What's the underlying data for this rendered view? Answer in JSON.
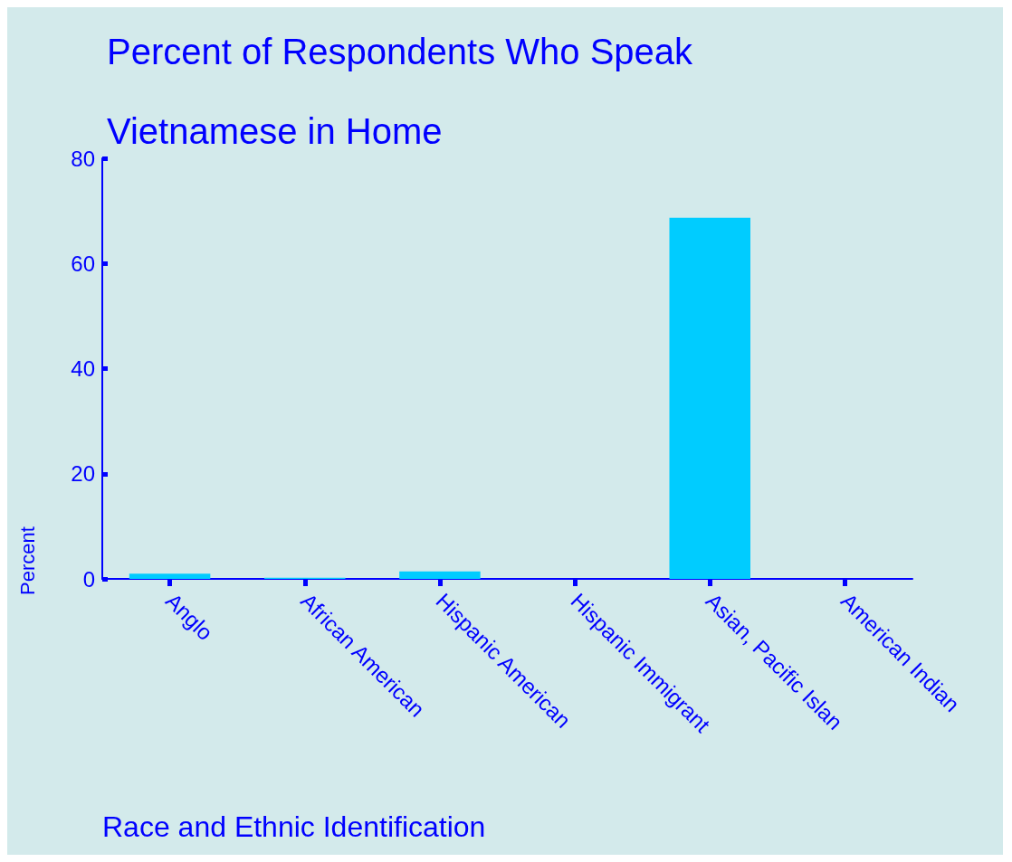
{
  "chart_data": {
    "type": "bar",
    "title": "Percent of Respondents Who Speak\nVietnamese in Home",
    "xlabel": "Race and Ethnic Identification",
    "ylabel": "Percent",
    "categories": [
      "Anglo",
      "African American",
      "Hispanic American",
      "Hispanic Immigrant",
      "Asian, Pacific Islan",
      "American Indian"
    ],
    "values": [
      1.0,
      0.2,
      1.4,
      0,
      68.7,
      0
    ],
    "color": "#00ccff",
    "ylim": [
      0,
      80
    ],
    "yticks": [
      0,
      20,
      40,
      60,
      80
    ],
    "grid": false
  }
}
